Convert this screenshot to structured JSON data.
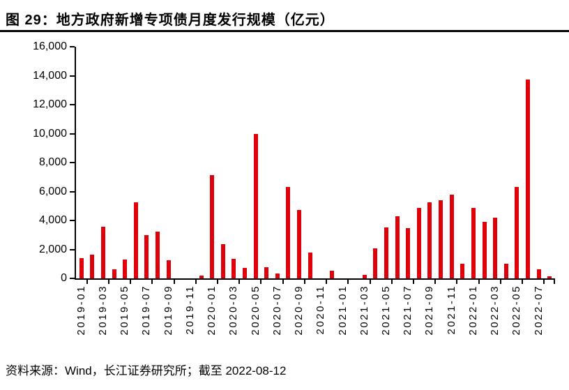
{
  "page": {
    "title": "图 29：地方政府新增专项债月度发行规模（亿元）",
    "source_note": "资料来源：Wind，长江证券研究所；截至 2022-08-12"
  },
  "chart_data": {
    "type": "bar",
    "title": "地方政府新增专项债月度发行规模（亿元）",
    "figure_label": "图 29",
    "unit": "亿元",
    "ylim": [
      0,
      16000
    ],
    "ytick_step": 2000,
    "ytick_labels": [
      "0",
      "2,000",
      "4,000",
      "6,000",
      "8,000",
      "10,000",
      "12,000",
      "14,000",
      "16,000"
    ],
    "xtick_labels": [
      "2019-01",
      "2019-03",
      "2019-05",
      "2019-07",
      "2019-09",
      "2019-11",
      "2020-01",
      "2020-03",
      "2020-05",
      "2020-07",
      "2020-09",
      "2020-11",
      "2021-01",
      "2021-03",
      "2021-05",
      "2021-07",
      "2021-09",
      "2021-11",
      "2022-01",
      "2022-03",
      "2022-05",
      "2022-07"
    ],
    "categories": [
      "2019-01",
      "2019-02",
      "2019-03",
      "2019-04",
      "2019-05",
      "2019-06",
      "2019-07",
      "2019-08",
      "2019-09",
      "2019-10",
      "2019-11",
      "2019-12",
      "2020-01",
      "2020-02",
      "2020-03",
      "2020-04",
      "2020-05",
      "2020-06",
      "2020-07",
      "2020-08",
      "2020-09",
      "2020-10",
      "2020-11",
      "2020-12",
      "2021-01",
      "2021-02",
      "2021-03",
      "2021-04",
      "2021-05",
      "2021-06",
      "2021-07",
      "2021-08",
      "2021-09",
      "2021-10",
      "2021-11",
      "2021-12",
      "2022-01",
      "2022-02",
      "2022-03",
      "2022-04",
      "2022-05",
      "2022-06",
      "2022-07",
      "2022-08"
    ],
    "values": [
      1400,
      1650,
      3560,
      650,
      1300,
      5260,
      2980,
      3210,
      1230,
      0,
      0,
      200,
      7150,
      2350,
      1340,
      720,
      9990,
      790,
      350,
      6310,
      4720,
      1780,
      0,
      550,
      0,
      0,
      230,
      2050,
      3500,
      4300,
      3450,
      4890,
      5230,
      5400,
      5780,
      1000,
      4850,
      3900,
      4170,
      1000,
      6330,
      13750,
      610,
      150
    ],
    "bar_color": "#e0000a",
    "axis_color": "#000000",
    "grid": false,
    "legend": false
  }
}
